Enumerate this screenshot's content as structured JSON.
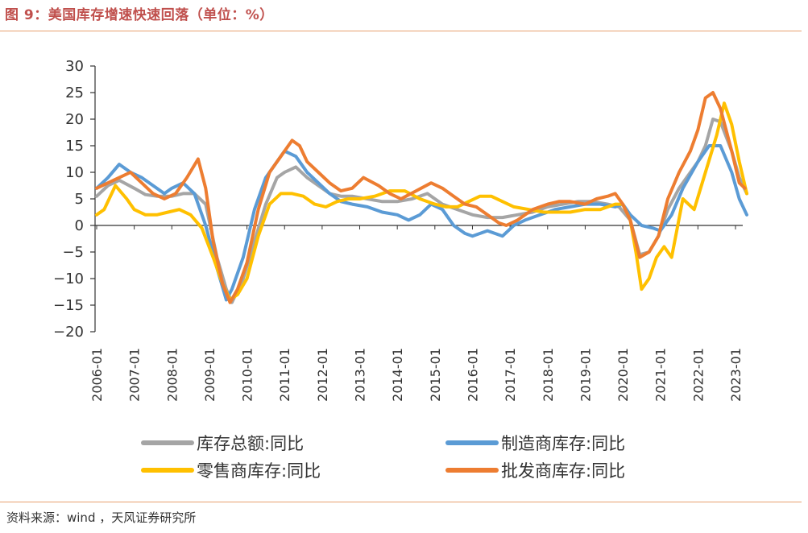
{
  "header": {
    "title": "图 9：美国库存增速快速回落（单位：%）"
  },
  "footer": {
    "source": "资料来源：wind ，天风证券研究所"
  },
  "chart_data": {
    "type": "line",
    "title": "图 9：美国库存增速快速回落（单位：%）",
    "xlabel": "",
    "ylabel": "",
    "ylim": [
      -20,
      30
    ],
    "yticks": [
      30,
      25,
      20,
      15,
      10,
      5,
      0,
      -5,
      -10,
      -15,
      -20
    ],
    "xlim": [
      2006.0,
      2023.6
    ],
    "xticks": [
      "2006-01",
      "2007-01",
      "2008-01",
      "2009-01",
      "2010-01",
      "2011-01",
      "2012-01",
      "2013-01",
      "2014-01",
      "2015-01",
      "2016-01",
      "2017-01",
      "2018-01",
      "2019-01",
      "2020-01",
      "2021-01",
      "2022-01",
      "2023-01"
    ],
    "grid": false,
    "legend": "bottom",
    "series": [
      {
        "name": "库存总额:同比",
        "color": "#a5a5a5",
        "x": [
          2006.0,
          2006.3,
          2006.6,
          2007.0,
          2007.3,
          2007.6,
          2008.0,
          2008.3,
          2008.6,
          2008.9,
          2009.2,
          2009.45,
          2009.6,
          2009.9,
          2010.2,
          2010.5,
          2010.8,
          2011.0,
          2011.3,
          2011.6,
          2011.9,
          2012.2,
          2012.5,
          2012.8,
          2013.2,
          2013.6,
          2014.0,
          2014.4,
          2014.8,
          2015.2,
          2015.6,
          2016.0,
          2016.4,
          2016.8,
          2017.2,
          2017.6,
          2018.0,
          2018.4,
          2018.8,
          2019.2,
          2019.6,
          2019.9,
          2020.2,
          2020.45,
          2020.7,
          2020.95,
          2021.2,
          2021.5,
          2021.8,
          2022.0,
          2022.2,
          2022.4,
          2022.6,
          2022.9,
          2023.1,
          2023.3
        ],
        "values": [
          5.5,
          7.5,
          8.5,
          7,
          5.8,
          5.5,
          5.5,
          6,
          6,
          4,
          -6,
          -12,
          -14.5,
          -10,
          -3,
          4,
          9,
          10,
          11,
          9,
          7.5,
          6,
          5.5,
          5.5,
          5,
          4.5,
          4.5,
          5,
          6,
          4,
          3,
          2,
          1.5,
          1.5,
          2,
          2.5,
          3.5,
          4,
          4.5,
          4.5,
          4,
          3.5,
          1,
          -5.5,
          -5,
          -2,
          3,
          7,
          10,
          12,
          15,
          20,
          19.5,
          14,
          9,
          6
        ]
      },
      {
        "name": "制造商库存:同比",
        "color": "#5b9bd5",
        "x": [
          2006.0,
          2006.3,
          2006.6,
          2006.9,
          2007.2,
          2007.5,
          2007.8,
          2008.0,
          2008.3,
          2008.6,
          2008.9,
          2009.2,
          2009.45,
          2009.6,
          2009.9,
          2010.2,
          2010.5,
          2010.8,
          2011.0,
          2011.3,
          2011.6,
          2011.9,
          2012.2,
          2012.5,
          2012.8,
          2013.2,
          2013.6,
          2014.0,
          2014.3,
          2014.6,
          2014.9,
          2015.2,
          2015.5,
          2015.8,
          2016.0,
          2016.4,
          2016.8,
          2017.1,
          2017.4,
          2017.8,
          2018.2,
          2018.6,
          2019.0,
          2019.4,
          2019.8,
          2020.0,
          2020.2,
          2020.5,
          2020.8,
          2021.0,
          2021.3,
          2021.6,
          2022.0,
          2022.3,
          2022.6,
          2022.9,
          2023.1,
          2023.3
        ],
        "values": [
          7,
          9,
          11.5,
          10,
          9,
          7.5,
          6,
          7,
          8,
          6,
          0,
          -8,
          -14,
          -12,
          -6,
          3,
          9,
          12,
          14,
          13,
          10,
          8,
          6,
          4.5,
          4,
          3.5,
          2.5,
          2,
          1,
          2,
          4,
          3,
          0,
          -1.5,
          -2,
          -1,
          -2,
          0,
          1,
          2,
          3,
          3.5,
          4,
          4,
          3.5,
          4,
          2,
          0,
          -0.5,
          -1,
          2,
          7,
          12,
          15,
          15,
          10,
          5,
          2
        ]
      },
      {
        "name": "零售商库存:同比",
        "color": "#ffc000",
        "x": [
          2006.0,
          2006.2,
          2006.5,
          2006.8,
          2007.0,
          2007.3,
          2007.6,
          2007.9,
          2008.2,
          2008.5,
          2008.8,
          2009.1,
          2009.35,
          2009.55,
          2009.75,
          2010.0,
          2010.3,
          2010.6,
          2010.9,
          2011.2,
          2011.5,
          2011.8,
          2012.1,
          2012.4,
          2012.7,
          2013.0,
          2013.4,
          2013.8,
          2014.2,
          2014.6,
          2015.0,
          2015.3,
          2015.6,
          2015.9,
          2016.2,
          2016.5,
          2016.8,
          2017.1,
          2017.5,
          2017.9,
          2018.2,
          2018.6,
          2019.0,
          2019.4,
          2019.8,
          2020.0,
          2020.2,
          2020.35,
          2020.5,
          2020.7,
          2020.9,
          2021.1,
          2021.3,
          2021.6,
          2021.9,
          2022.2,
          2022.5,
          2022.7,
          2022.9,
          2023.1,
          2023.3
        ],
        "values": [
          2,
          3,
          7.5,
          5,
          3,
          2,
          2,
          2.5,
          3,
          2,
          -0.5,
          -6,
          -11,
          -14,
          -13,
          -10,
          -2,
          4,
          6,
          6,
          5.5,
          4,
          3.5,
          4.5,
          5,
          5,
          5.5,
          6.5,
          6.5,
          5,
          4,
          3.5,
          3.5,
          4.5,
          5.5,
          5.5,
          4.5,
          3.5,
          3,
          2.5,
          2.5,
          2.5,
          3,
          3,
          4,
          4,
          1,
          -5,
          -12,
          -10,
          -6,
          -4,
          -6,
          5,
          3,
          10,
          17,
          23,
          19,
          12,
          6
        ]
      },
      {
        "name": "批发商库存:同比",
        "color": "#ed7d31",
        "x": [
          2006.0,
          2006.3,
          2006.6,
          2006.9,
          2007.2,
          2007.5,
          2007.8,
          2008.1,
          2008.4,
          2008.7,
          2008.9,
          2009.1,
          2009.35,
          2009.55,
          2009.75,
          2010.0,
          2010.3,
          2010.6,
          2010.9,
          2011.2,
          2011.4,
          2011.6,
          2011.9,
          2012.2,
          2012.5,
          2012.8,
          2013.1,
          2013.5,
          2013.8,
          2014.1,
          2014.5,
          2014.9,
          2015.2,
          2015.5,
          2015.8,
          2016.1,
          2016.4,
          2016.7,
          2016.9,
          2017.2,
          2017.6,
          2018.0,
          2018.3,
          2018.6,
          2019.0,
          2019.3,
          2019.6,
          2019.8,
          2020.0,
          2020.2,
          2020.45,
          2020.7,
          2020.95,
          2021.2,
          2021.5,
          2021.8,
          2022.0,
          2022.2,
          2022.4,
          2022.6,
          2022.9,
          2023.1,
          2023.25
        ],
        "values": [
          7,
          8,
          9,
          10,
          8,
          6,
          5,
          6,
          9,
          12.5,
          7,
          -3,
          -11,
          -14.5,
          -12,
          -7,
          3,
          10,
          13,
          16,
          15,
          12,
          10,
          8,
          6.5,
          7,
          9,
          7.5,
          6,
          5,
          6.5,
          8,
          7,
          5.5,
          4,
          3.5,
          2,
          0.5,
          0,
          1,
          3,
          4,
          4.5,
          4.5,
          4,
          5,
          5.5,
          6,
          4,
          1,
          -6,
          -5,
          -2,
          5,
          10,
          14,
          18,
          24,
          25,
          22,
          14,
          8,
          7
        ]
      }
    ]
  },
  "legend": {
    "items": [
      {
        "label": "库存总额:同比",
        "color": "#a5a5a5"
      },
      {
        "label": "制造商库存:同比",
        "color": "#5b9bd5"
      },
      {
        "label": "零售商库存:同比",
        "color": "#ffc000"
      },
      {
        "label": "批发商库存:同比",
        "color": "#ed7d31"
      }
    ]
  }
}
